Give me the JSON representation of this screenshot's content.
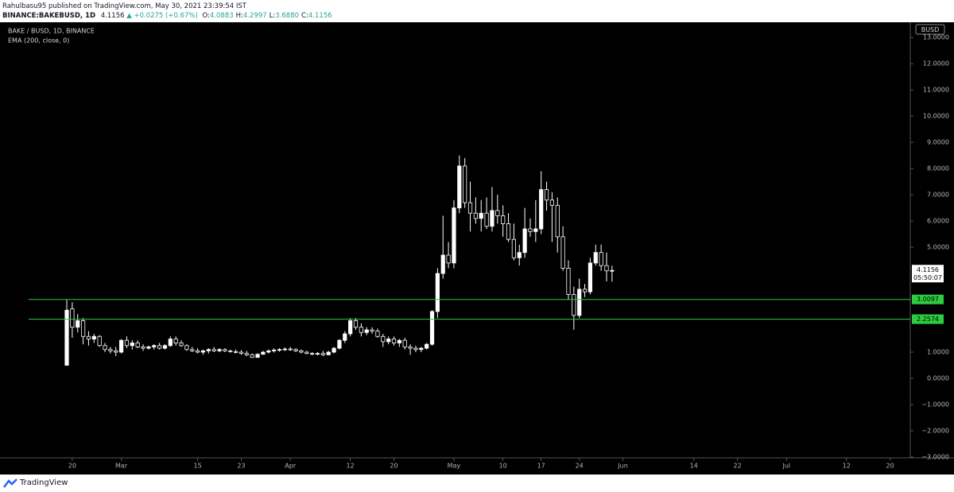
{
  "header": {
    "published": "Rahulbasu95 published on TradingView.com, May 30, 2021 23:39:54 IST",
    "symbol": "BINANCE:BAKEBUSD, 1D",
    "last": "4.1156",
    "change": "+0.0275 (+0.67%)",
    "ohlc": [
      {
        "label": "O:",
        "value": "4.0883"
      },
      {
        "label": "H:",
        "value": "4.2997"
      },
      {
        "label": "L:",
        "value": "3.6880"
      },
      {
        "label": "C:",
        "value": "4.1156"
      }
    ]
  },
  "footer": {
    "brand": "TradingView"
  },
  "chart_data": {
    "type": "candlestick",
    "legend": [
      "BAKE / BUSD, 1D, BINANCE",
      "EMA (200, close, 0)"
    ],
    "currency": "BUSD",
    "countdown": "05:50:07",
    "xlim": [
      -7,
      154.7
    ],
    "xticks": [
      {
        "value": 1,
        "label": "20"
      },
      {
        "value": 10,
        "label": "Mar"
      },
      {
        "value": 24,
        "label": "15"
      },
      {
        "value": 32,
        "label": "23"
      },
      {
        "value": 41,
        "label": "Apr"
      },
      {
        "value": 52,
        "label": "12"
      },
      {
        "value": 60,
        "label": "20"
      },
      {
        "value": 71,
        "label": "May"
      },
      {
        "value": 80,
        "label": "10"
      },
      {
        "value": 87,
        "label": "17"
      },
      {
        "value": 94,
        "label": "24"
      },
      {
        "value": 102,
        "label": "Jun"
      },
      {
        "value": 115,
        "label": "14"
      },
      {
        "value": 123,
        "label": "22"
      },
      {
        "value": 132,
        "label": "Jul"
      },
      {
        "value": 143,
        "label": "12"
      },
      {
        "value": 151,
        "label": "20"
      }
    ],
    "ylim": [
      -3.03,
      13.52
    ],
    "yticks": [
      {
        "value": 13,
        "label": "13.0000"
      },
      {
        "value": 12,
        "label": "12.0000"
      },
      {
        "value": 11,
        "label": "11.0000"
      },
      {
        "value": 10,
        "label": "10.0000"
      },
      {
        "value": 9,
        "label": "9.0000"
      },
      {
        "value": 8,
        "label": "8.0000"
      },
      {
        "value": 7,
        "label": "7.0000"
      },
      {
        "value": 6,
        "label": "6.0000"
      },
      {
        "value": 5,
        "label": "5.0000"
      },
      {
        "value": 1,
        "label": "1.0000"
      },
      {
        "value": 0,
        "label": "0.0000"
      },
      {
        "value": -1,
        "label": "−1.0000"
      },
      {
        "value": -2,
        "label": "−2.0000"
      },
      {
        "value": -3,
        "label": "−3.0000"
      }
    ],
    "hlines": [
      {
        "value": 3.0097,
        "color": "#2ecc40"
      },
      {
        "value": 2.2574,
        "color": "#2ecc40"
      }
    ],
    "series": [
      {
        "color": "#ffffff",
        "x": [
          0,
          1,
          2,
          3,
          4,
          5,
          6,
          7,
          8,
          9,
          10,
          11,
          12,
          13,
          14,
          15,
          16,
          17,
          18,
          19,
          20,
          21,
          22,
          23,
          24,
          25,
          26,
          27,
          28,
          29,
          30,
          31,
          32,
          33,
          34,
          35,
          36,
          37,
          38,
          39,
          40,
          41,
          42,
          43,
          44,
          45,
          46,
          47,
          48,
          49,
          50,
          51,
          52,
          53,
          54,
          55,
          56,
          57,
          58,
          59,
          60,
          61,
          62,
          63,
          64,
          65,
          66,
          67,
          68,
          69,
          70,
          71,
          72,
          73,
          74,
          75,
          76,
          77,
          78,
          79,
          80,
          81,
          82,
          83,
          84,
          85,
          86,
          87,
          88,
          89,
          90,
          91,
          92,
          93,
          94,
          95,
          96,
          97,
          98,
          99,
          100
        ],
        "open": [
          0.5,
          2.65,
          1.95,
          2.2,
          1.6,
          1.5,
          1.6,
          1.25,
          1.1,
          1.05,
          1.0,
          1.45,
          1.25,
          1.35,
          1.2,
          1.15,
          1.2,
          1.25,
          1.15,
          1.25,
          1.5,
          1.35,
          1.25,
          1.1,
          1.05,
          1.0,
          1.05,
          1.1,
          1.05,
          1.1,
          1.05,
          1.02,
          1.0,
          0.95,
          0.9,
          0.8,
          0.92,
          1.0,
          1.05,
          1.08,
          1.1,
          1.12,
          1.1,
          1.05,
          1.0,
          0.95,
          0.92,
          0.95,
          0.9,
          1.0,
          1.15,
          1.45,
          1.7,
          2.2,
          1.95,
          1.75,
          1.85,
          1.8,
          1.6,
          1.4,
          1.5,
          1.35,
          1.45,
          1.2,
          1.15,
          1.1,
          1.15,
          1.3,
          2.55,
          4.0,
          4.7,
          4.4,
          6.5,
          8.1,
          6.7,
          6.3,
          6.1,
          6.3,
          5.8,
          6.4,
          6.2,
          5.9,
          5.3,
          4.6,
          4.8,
          5.7,
          5.6,
          5.7,
          7.2,
          6.8,
          6.6,
          5.4,
          4.2,
          3.2,
          2.4,
          3.4,
          3.3,
          4.4,
          4.8,
          4.3,
          4.0883
        ],
        "high": [
          3.0,
          2.9,
          2.45,
          2.3,
          1.8,
          1.7,
          1.65,
          1.35,
          1.2,
          1.2,
          1.5,
          1.6,
          1.45,
          1.45,
          1.3,
          1.25,
          1.3,
          1.35,
          1.3,
          1.6,
          1.6,
          1.45,
          1.3,
          1.2,
          1.15,
          1.1,
          1.15,
          1.2,
          1.15,
          1.15,
          1.1,
          1.1,
          1.08,
          1.05,
          0.95,
          0.95,
          1.05,
          1.1,
          1.15,
          1.15,
          1.18,
          1.2,
          1.15,
          1.1,
          1.05,
          1.0,
          1.0,
          1.05,
          1.05,
          1.2,
          1.5,
          1.8,
          2.3,
          2.3,
          2.1,
          1.95,
          1.95,
          1.9,
          1.7,
          1.6,
          1.6,
          1.5,
          1.55,
          1.3,
          1.25,
          1.2,
          1.35,
          2.6,
          4.2,
          6.2,
          5.2,
          6.8,
          8.5,
          8.4,
          7.5,
          6.9,
          6.8,
          6.9,
          7.3,
          7.0,
          6.6,
          6.3,
          5.9,
          5.1,
          6.5,
          6.1,
          6.8,
          7.9,
          7.5,
          7.1,
          6.9,
          5.8,
          4.5,
          3.5,
          3.8,
          3.6,
          4.6,
          5.1,
          5.1,
          4.8,
          4.2997
        ],
        "low": [
          0.48,
          1.55,
          1.75,
          1.3,
          1.25,
          1.35,
          1.2,
          1.0,
          0.95,
          0.85,
          0.95,
          1.15,
          1.1,
          1.15,
          1.05,
          1.1,
          1.1,
          1.1,
          1.1,
          1.2,
          1.25,
          1.2,
          1.05,
          1.0,
          0.95,
          0.9,
          0.95,
          1.0,
          1.0,
          1.0,
          0.98,
          0.95,
          0.9,
          0.85,
          0.78,
          0.78,
          0.9,
          0.95,
          0.98,
          1.02,
          1.05,
          1.05,
          1.0,
          0.95,
          0.92,
          0.88,
          0.88,
          0.85,
          0.88,
          0.95,
          1.1,
          1.35,
          1.6,
          1.85,
          1.6,
          1.65,
          1.7,
          1.55,
          1.2,
          1.3,
          1.25,
          1.2,
          1.1,
          0.9,
          1.0,
          1.0,
          1.1,
          1.25,
          2.3,
          3.8,
          4.2,
          4.2,
          6.3,
          6.5,
          5.6,
          5.9,
          5.6,
          5.7,
          5.6,
          5.9,
          5.4,
          5.2,
          4.5,
          4.3,
          4.6,
          5.4,
          5.2,
          5.5,
          6.4,
          5.2,
          4.8,
          4.1,
          3.0,
          1.85,
          2.3,
          3.1,
          3.2,
          4.3,
          4.1,
          3.7,
          3.688
        ],
        "close": [
          2.6,
          1.95,
          2.2,
          1.6,
          1.5,
          1.6,
          1.25,
          1.1,
          1.05,
          1.0,
          1.45,
          1.25,
          1.35,
          1.2,
          1.15,
          1.2,
          1.25,
          1.15,
          1.25,
          1.5,
          1.35,
          1.25,
          1.1,
          1.05,
          1.0,
          1.05,
          1.1,
          1.05,
          1.1,
          1.05,
          1.02,
          1.0,
          0.95,
          0.9,
          0.8,
          0.92,
          1.0,
          1.05,
          1.08,
          1.1,
          1.12,
          1.1,
          1.05,
          1.0,
          0.95,
          0.92,
          0.95,
          0.9,
          1.0,
          1.15,
          1.45,
          1.7,
          2.2,
          1.95,
          1.75,
          1.85,
          1.8,
          1.6,
          1.4,
          1.5,
          1.35,
          1.45,
          1.2,
          1.15,
          1.1,
          1.15,
          1.3,
          2.55,
          4.0,
          4.7,
          4.4,
          6.5,
          8.1,
          6.7,
          6.3,
          6.1,
          6.3,
          5.8,
          6.4,
          6.2,
          5.9,
          5.3,
          4.6,
          4.8,
          5.7,
          5.6,
          5.7,
          7.2,
          6.8,
          6.6,
          5.4,
          4.2,
          3.2,
          2.4,
          3.4,
          3.3,
          4.4,
          4.8,
          4.3,
          4.1,
          4.1156
        ]
      }
    ]
  }
}
